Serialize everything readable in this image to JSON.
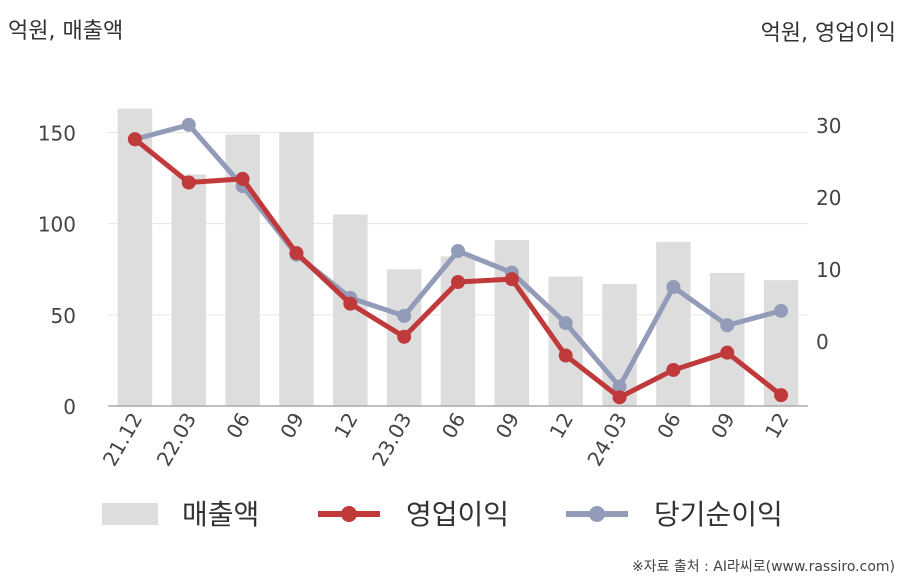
{
  "chart_data": {
    "type": "bar+line",
    "left_axis_label": "억원, 매출액",
    "right_axis_label": "억원, 영업이익",
    "categories": [
      "21.12",
      "22.03",
      "06",
      "09",
      "12",
      "23.03",
      "06",
      "09",
      "12",
      "24.03",
      "06",
      "09",
      "12"
    ],
    "left_ylim": [
      0,
      170
    ],
    "left_ticks": [
      0,
      50,
      100,
      150
    ],
    "right_ylim": [
      -9,
      34
    ],
    "right_ticks": [
      0,
      10,
      20,
      30
    ],
    "series": [
      {
        "name": "매출액",
        "type": "bar",
        "axis": "left",
        "color": "#dddddd",
        "values": [
          163,
          127,
          149,
          150,
          105,
          75,
          82,
          91,
          71,
          67,
          90,
          73,
          69
        ]
      },
      {
        "name": "영업이익",
        "type": "line",
        "axis": "right",
        "color": "#c0393b",
        "values": [
          28.0,
          22.0,
          22.5,
          12.2,
          5.2,
          0.6,
          8.2,
          8.6,
          -2.0,
          -7.8,
          -4.0,
          -1.6,
          -7.5
        ]
      },
      {
        "name": "당기순이익",
        "type": "line",
        "axis": "right",
        "color": "#929cb8",
        "values": [
          28.0,
          30.0,
          21.5,
          12.0,
          6.0,
          3.5,
          12.5,
          9.5,
          2.5,
          -6.3,
          7.5,
          2.2,
          4.2
        ]
      }
    ],
    "legend_position": "bottom",
    "grid": "horizontal",
    "source": "※자료 출처 : AI라씨로(www.rassiro.com)"
  }
}
